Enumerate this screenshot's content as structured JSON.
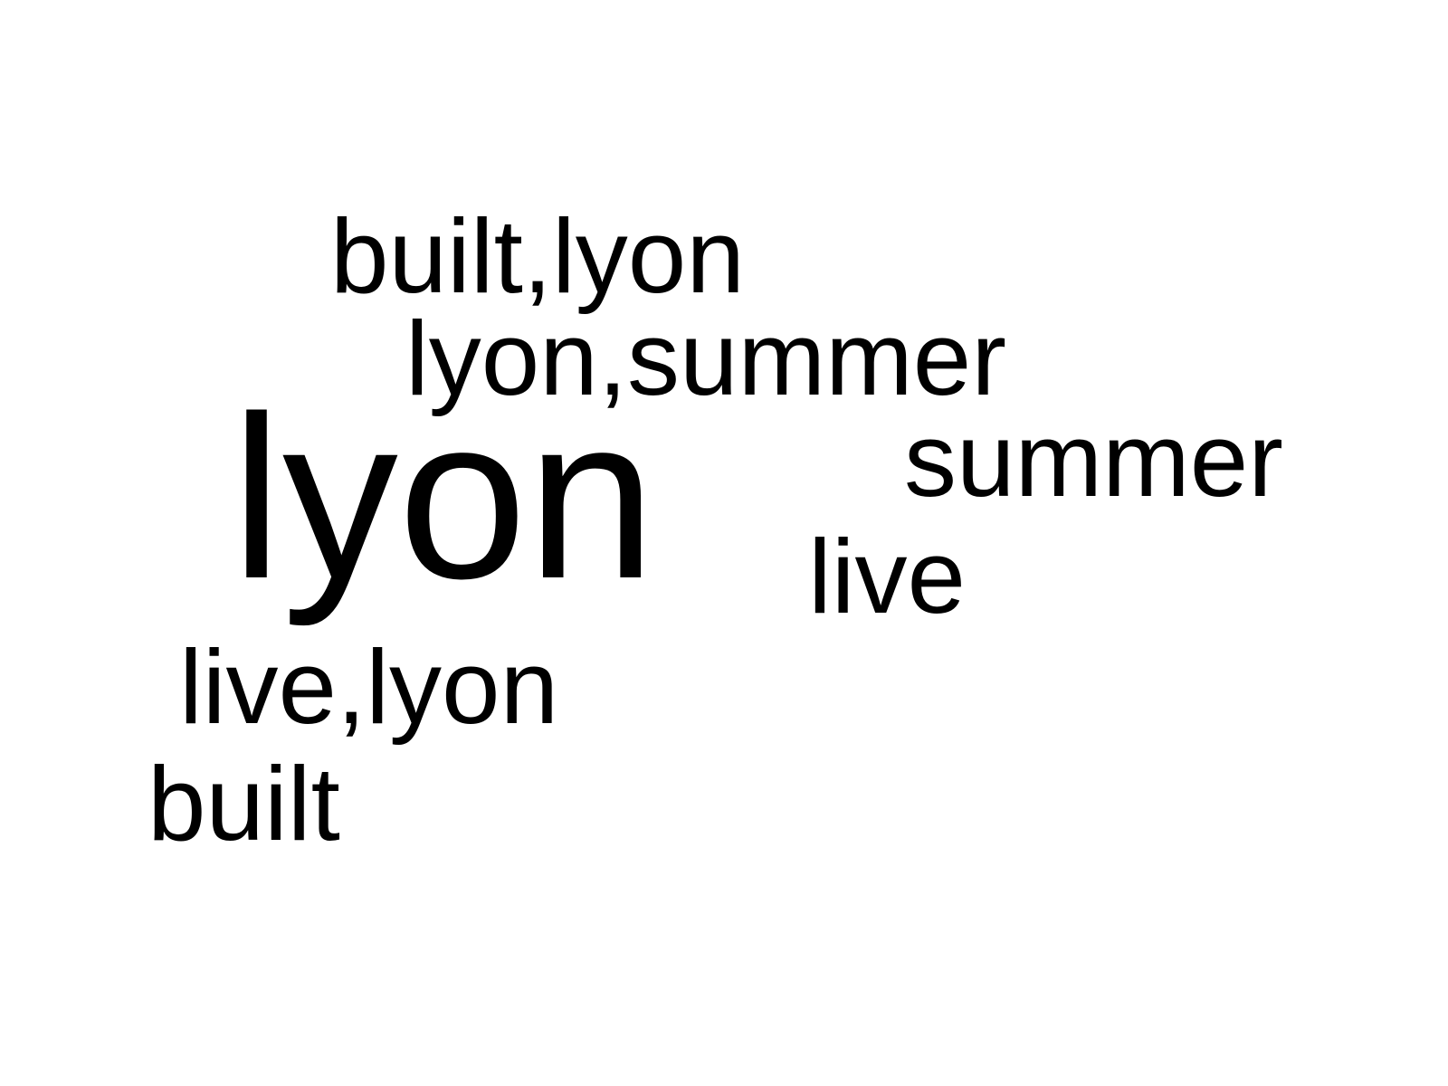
{
  "word_cloud": {
    "words": [
      {
        "text": "built,lyon"
      },
      {
        "text": "lyon,summer"
      },
      {
        "text": "summer"
      },
      {
        "text": "lyon"
      },
      {
        "text": "live"
      },
      {
        "text": "live,lyon"
      },
      {
        "text": "built"
      }
    ],
    "colors": {
      "text": "#000000",
      "background": "#ffffff"
    }
  }
}
